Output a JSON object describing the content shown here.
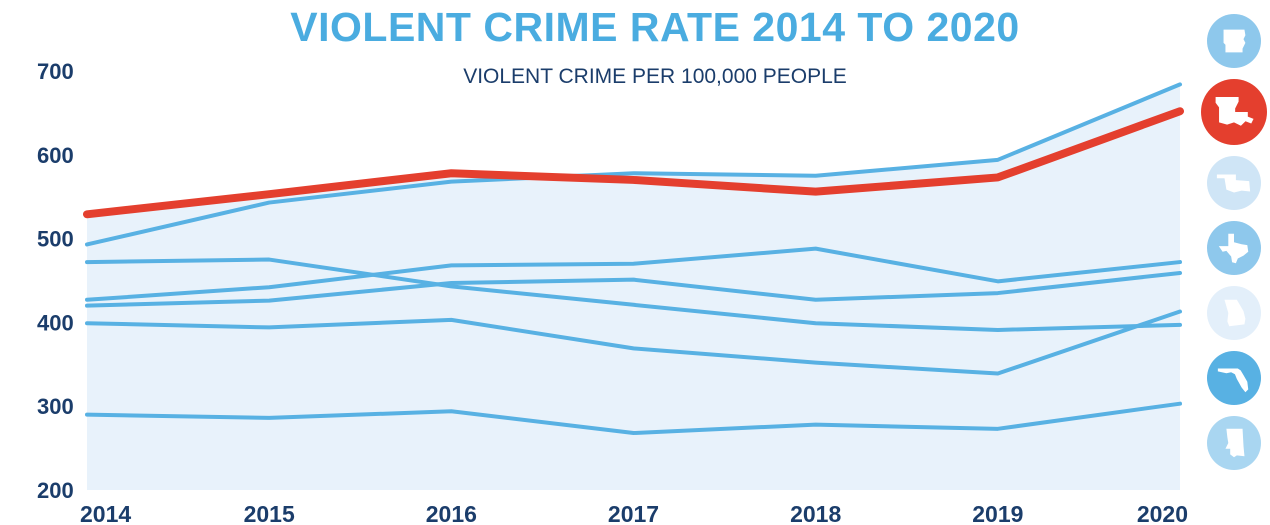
{
  "colors": {
    "highlight": "#e43f2e",
    "series": "#58b1e3",
    "area": "#e8f2fb",
    "tick_text": "#1b3d6b",
    "title": "#4aace0"
  },
  "state_icons": [
    {
      "icon": "arkansas-state-icon",
      "color": "#8ec8ec",
      "highlight": false
    },
    {
      "icon": "louisiana-state-icon",
      "color": "#e43f2e",
      "highlight": true
    },
    {
      "icon": "oklahoma-state-icon",
      "color": "#cfe5f6",
      "highlight": false
    },
    {
      "icon": "texas-state-icon",
      "color": "#8ec8ec",
      "highlight": false
    },
    {
      "icon": "georgia-state-icon",
      "color": "#e3effa",
      "highlight": false
    },
    {
      "icon": "florida-state-icon",
      "color": "#58b1e3",
      "highlight": false
    },
    {
      "icon": "mississippi-state-icon",
      "color": "#a9d6f1",
      "highlight": false
    }
  ],
  "chart_data": {
    "type": "line",
    "title": "VIOLENT CRIME RATE 2014 TO 2020",
    "subtitle": "VIOLENT CRIME PER 100,000 PEOPLE",
    "x": [
      "2014",
      "2015",
      "2016",
      "2017",
      "2018",
      "2019",
      "2020"
    ],
    "yticks": [
      "700",
      "600",
      "500",
      "400",
      "300",
      "200"
    ],
    "ylim": [
      200,
      700
    ],
    "grid": false,
    "legend": "state icons at right",
    "series": [
      {
        "values": [
          493,
          543,
          568,
          578,
          575,
          594,
          684
        ],
        "highlight": false
      },
      {
        "values": [
          529,
          553,
          578,
          570,
          556,
          573,
          652
        ],
        "highlight": true
      },
      {
        "values": [
          472,
          475,
          443,
          421,
          399,
          391,
          397
        ],
        "highlight": false
      },
      {
        "values": [
          420,
          426,
          447,
          451,
          427,
          435,
          459
        ],
        "highlight": false
      },
      {
        "values": [
          427,
          442,
          468,
          470,
          488,
          449,
          472
        ],
        "highlight": false
      },
      {
        "values": [
          399,
          394,
          403,
          369,
          352,
          339,
          413
        ],
        "highlight": false
      },
      {
        "values": [
          290,
          286,
          294,
          268,
          278,
          273,
          303
        ],
        "highlight": false
      }
    ]
  }
}
